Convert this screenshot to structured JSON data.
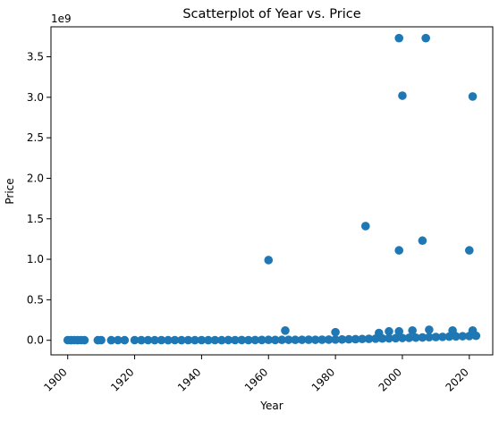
{
  "chart_data": {
    "type": "scatter",
    "title": "Scatterplot of Year vs. Price",
    "xlabel": "Year",
    "ylabel": "Price",
    "y_offset_label": "1e9",
    "xlim": [
      1895,
      2027
    ],
    "ylim": [
      -0.18,
      3.87
    ],
    "y_units_multiplier": 1000000000,
    "grid": false,
    "legend": "none",
    "marker_color": "#1f77b4",
    "x_ticks": [
      1900,
      1920,
      1940,
      1960,
      1980,
      2000,
      2020
    ],
    "x_tick_labels": [
      "1900",
      "1920",
      "1940",
      "1960",
      "1980",
      "2000",
      "2020"
    ],
    "y_ticks": [
      0.0,
      0.5,
      1.0,
      1.5,
      2.0,
      2.5,
      3.0,
      3.5
    ],
    "y_tick_labels": [
      "0.0",
      "0.5",
      "1.0",
      "1.5",
      "2.0",
      "2.5",
      "3.0",
      "3.5"
    ],
    "series": [
      {
        "x": [
          1900,
          1901,
          1902,
          1903,
          1904,
          1905,
          1909,
          1910,
          1913,
          1915,
          1917,
          1920,
          1922,
          1924,
          1926,
          1928,
          1930,
          1932,
          1934,
          1936,
          1938,
          1940,
          1942,
          1944,
          1946,
          1948,
          1950,
          1952,
          1954,
          1956,
          1958,
          1960,
          1962,
          1964,
          1966,
          1968,
          1970,
          1972,
          1974,
          1976,
          1978,
          1980,
          1982,
          1984,
          1986,
          1988,
          1990,
          1992,
          1994,
          1996,
          1998,
          2000,
          2002,
          2004,
          2006,
          2008,
          2010,
          2012,
          2014,
          2016,
          2018,
          2020,
          2022,
          1960,
          1965,
          1980,
          1989,
          1993,
          1996,
          1999,
          1999,
          1999,
          2000,
          2003,
          2006,
          2007,
          2008,
          2015,
          2020,
          2021,
          2021
        ],
        "y": [
          0.002,
          0.001,
          0.002,
          0.001,
          0.002,
          0.001,
          0.001,
          0.002,
          0.001,
          0.002,
          0.001,
          0.002,
          0.001,
          0.002,
          0.001,
          0.002,
          0.001,
          0.002,
          0.001,
          0.002,
          0.001,
          0.002,
          0.001,
          0.002,
          0.001,
          0.003,
          0.002,
          0.003,
          0.002,
          0.003,
          0.004,
          0.005,
          0.004,
          0.005,
          0.006,
          0.005,
          0.006,
          0.007,
          0.006,
          0.007,
          0.008,
          0.009,
          0.01,
          0.012,
          0.014,
          0.016,
          0.018,
          0.02,
          0.022,
          0.024,
          0.026,
          0.028,
          0.03,
          0.032,
          0.035,
          0.038,
          0.04,
          0.042,
          0.045,
          0.048,
          0.05,
          0.052,
          0.055,
          0.99,
          0.12,
          0.1,
          1.41,
          0.09,
          0.11,
          3.73,
          1.11,
          0.11,
          3.02,
          0.12,
          1.23,
          3.73,
          0.13,
          0.12,
          1.11,
          3.01,
          0.12
        ]
      }
    ]
  }
}
